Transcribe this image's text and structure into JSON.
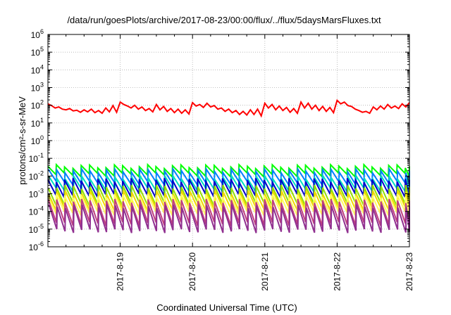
{
  "chart_data": {
    "type": "line",
    "title": "/data/run/goesPlots/archive/2017-08-23/00:00/flux/../flux/5daysMarsFluxes.txt",
    "xlabel": "Coordinated Universal Time (UTC)",
    "ylabel": "protons/cm²-s-sr-MeV",
    "y_scale": "log",
    "ylim": [
      1e-06,
      1000000.0
    ],
    "xlim": [
      "2017-08-18",
      "2017-08-23"
    ],
    "x_ticks": [
      "2017-8-19",
      "2017-8-20",
      "2017-8-21",
      "2017-8-22",
      "2017-8-23"
    ],
    "y_ticks": [
      -6,
      -5,
      -4,
      -3,
      -2,
      -1,
      0,
      1,
      2,
      3,
      4,
      5,
      6
    ],
    "grid": true,
    "legend": "none",
    "series": [
      {
        "color": "#00ff00",
        "cycles": [
          "2017-08-18T00:00",
          "2017-08-18T02:47",
          "2017-08-18T05:31",
          "2017-08-18T08:19",
          "2017-08-18T11:02",
          "2017-08-18T13:50",
          "2017-08-18T16:34",
          "2017-08-18T19:17",
          "2017-08-18T22:05",
          "2017-08-19T00:48",
          "2017-08-19T03:36",
          "2017-08-19T06:20",
          "2017-08-19T09:07",
          "2017-08-19T11:51",
          "2017-08-19T14:38",
          "2017-08-19T17:22",
          "2017-08-19T20:10",
          "2017-08-19T22:53",
          "2017-08-20T01:41",
          "2017-08-20T04:24",
          "2017-08-20T07:12",
          "2017-08-20T09:56",
          "2017-08-20T12:43",
          "2017-08-20T15:27",
          "2017-08-20T18:14",
          "2017-08-20T20:58",
          "2017-08-20T23:46",
          "2017-08-21T02:29",
          "2017-08-21T05:17",
          "2017-08-21T08:00",
          "2017-08-21T10:48",
          "2017-08-21T13:31",
          "2017-08-21T16:19",
          "2017-08-21T19:02",
          "2017-08-21T21:50",
          "2017-08-22T00:34",
          "2017-08-22T03:22",
          "2017-08-22T06:05",
          "2017-08-22T08:53",
          "2017-08-22T11:36",
          "2017-08-22T14:24",
          "2017-08-22T17:07",
          "2017-08-22T19:55",
          "2017-08-22T22:38",
          "2017-08-23T00:00"
        ],
        "peak": 0.035,
        "trough": 0.012
      },
      {
        "color": "#0080ff",
        "cycles": [],
        "peak": 0.02,
        "trough": 0.004
      },
      {
        "color": "#00e0c0",
        "cycles": [],
        "peak": 0.008,
        "trough": 0.0015
      },
      {
        "color": "#0000cc",
        "cycles": [],
        "peak": 0.006,
        "trough": 0.0008
      },
      {
        "color": "#90e000",
        "cycles": [],
        "peak": 0.0025,
        "trough": 0.00025
      },
      {
        "color": "#f0d800",
        "cycles": [],
        "peak": 0.0012,
        "trough": 0.00012
      },
      {
        "color": "#ffff60",
        "cycles": [],
        "peak": 0.0008,
        "trough": 8e-05
      },
      {
        "color": "#c04080",
        "cycles": [],
        "peak": 0.0004,
        "trough": 2e-05
      },
      {
        "color": "#903090",
        "cycles": [],
        "peak": 0.0002,
        "trough": 8e-06
      },
      {
        "color": "#ff0000",
        "x": [
          "2017-08-18T00:00",
          "2017-08-18T01:12",
          "2017-08-18T02:24",
          "2017-08-18T03:36",
          "2017-08-18T04:48",
          "2017-08-18T06:00",
          "2017-08-18T07:12",
          "2017-08-18T08:24",
          "2017-08-18T09:36",
          "2017-08-18T10:48",
          "2017-08-18T12:00",
          "2017-08-18T13:12",
          "2017-08-18T14:24",
          "2017-08-18T15:36",
          "2017-08-18T16:48",
          "2017-08-18T18:00",
          "2017-08-18T19:12",
          "2017-08-18T20:24",
          "2017-08-18T21:36",
          "2017-08-18T22:48",
          "2017-08-19T00:00",
          "2017-08-19T01:12",
          "2017-08-19T02:24",
          "2017-08-19T03:36",
          "2017-08-19T04:48",
          "2017-08-19T06:00",
          "2017-08-19T07:12",
          "2017-08-19T08:24",
          "2017-08-19T09:36",
          "2017-08-19T10:48",
          "2017-08-19T12:00",
          "2017-08-19T13:12",
          "2017-08-19T14:24",
          "2017-08-19T15:36",
          "2017-08-19T16:48",
          "2017-08-19T18:00",
          "2017-08-19T19:12",
          "2017-08-19T20:24",
          "2017-08-19T21:36",
          "2017-08-19T22:48",
          "2017-08-20T00:00",
          "2017-08-20T01:12",
          "2017-08-20T02:24",
          "2017-08-20T03:36",
          "2017-08-20T04:48",
          "2017-08-20T06:00",
          "2017-08-20T07:12",
          "2017-08-20T08:24",
          "2017-08-20T09:36",
          "2017-08-20T10:48",
          "2017-08-20T12:00",
          "2017-08-20T13:12",
          "2017-08-20T14:24",
          "2017-08-20T15:36",
          "2017-08-20T16:48",
          "2017-08-20T18:00",
          "2017-08-20T19:12",
          "2017-08-20T20:24",
          "2017-08-20T21:36",
          "2017-08-20T22:48",
          "2017-08-21T00:00",
          "2017-08-21T01:12",
          "2017-08-21T02:24",
          "2017-08-21T03:36",
          "2017-08-21T04:48",
          "2017-08-21T06:00",
          "2017-08-21T07:12",
          "2017-08-21T08:24",
          "2017-08-21T09:36",
          "2017-08-21T10:48",
          "2017-08-21T12:00",
          "2017-08-21T13:12",
          "2017-08-21T14:24",
          "2017-08-21T15:36",
          "2017-08-21T16:48",
          "2017-08-21T18:00",
          "2017-08-21T19:12",
          "2017-08-21T20:24",
          "2017-08-21T21:36",
          "2017-08-21T22:48",
          "2017-08-22T00:00",
          "2017-08-22T01:12",
          "2017-08-22T02:24",
          "2017-08-22T03:36",
          "2017-08-22T04:48",
          "2017-08-22T06:00",
          "2017-08-22T07:12",
          "2017-08-22T08:24",
          "2017-08-22T09:36",
          "2017-08-22T10:48",
          "2017-08-22T12:00",
          "2017-08-22T13:12",
          "2017-08-22T14:24",
          "2017-08-22T15:36",
          "2017-08-22T16:48",
          "2017-08-22T18:00",
          "2017-08-22T19:12",
          "2017-08-22T20:24",
          "2017-08-22T21:36",
          "2017-08-22T22:48",
          "2017-08-23T00:00"
        ],
        "y": [
          120,
          95,
          70,
          80,
          60,
          55,
          65,
          48,
          52,
          40,
          55,
          42,
          60,
          38,
          50,
          35,
          70,
          42,
          95,
          40,
          150,
          110,
          90,
          70,
          100,
          60,
          80,
          50,
          65,
          42,
          110,
          55,
          85,
          45,
          65,
          38,
          60,
          35,
          55,
          32,
          140,
          90,
          110,
          75,
          130,
          80,
          95,
          60,
          70,
          45,
          60,
          38,
          50,
          30,
          45,
          28,
          55,
          30,
          60,
          25,
          130,
          70,
          110,
          55,
          90,
          50,
          75,
          40,
          65,
          35,
          150,
          70,
          130,
          60,
          100,
          50,
          85,
          45,
          75,
          38,
          190,
          120,
          150,
          95,
          85,
          60,
          50,
          40,
          45,
          35,
          80,
          55,
          90,
          60,
          110,
          70,
          90,
          65,
          120,
          80,
          140
        ]
      }
    ]
  }
}
